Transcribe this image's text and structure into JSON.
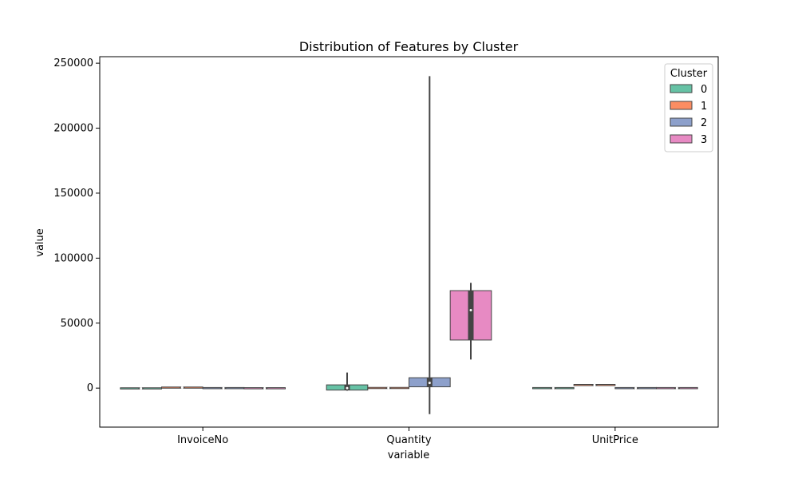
{
  "chart_data": {
    "type": "violin",
    "title": "Distribution of Features by Cluster",
    "xlabel": "variable",
    "ylabel": "value",
    "categories": [
      "InvoiceNo",
      "Quantity",
      "UnitPrice"
    ],
    "ylim": [
      -30000,
      255000
    ],
    "yticks": [
      0,
      50000,
      100000,
      150000,
      200000,
      250000
    ],
    "ytick_labels": [
      "0",
      "50000",
      "100000",
      "150000",
      "200000",
      "250000"
    ],
    "grid": false,
    "legend": {
      "title": "Cluster",
      "placement": "top-right",
      "entries": [
        "0",
        "1",
        "2",
        "3"
      ]
    },
    "series": [
      {
        "name": "0",
        "color": "#66c2a5",
        "values": [
          {
            "min": -500,
            "q1": -300,
            "median": -200,
            "q3": -100,
            "max": 200
          },
          {
            "min": -2000,
            "q1": -1500,
            "median": 0,
            "q3": 2500,
            "max": 12000
          },
          {
            "min": -300,
            "q1": -100,
            "median": 0,
            "q3": 100,
            "max": 300
          }
        ]
      },
      {
        "name": "1",
        "color": "#fc8d62",
        "values": [
          {
            "min": 200,
            "q1": 300,
            "median": 400,
            "q3": 500,
            "max": 600
          },
          {
            "min": -200,
            "q1": 0,
            "median": 100,
            "q3": 200,
            "max": 400
          },
          {
            "min": 2200,
            "q1": 2300,
            "median": 2400,
            "q3": 2500,
            "max": 2600
          }
        ]
      },
      {
        "name": "2",
        "color": "#8da0cb",
        "values": [
          {
            "min": -200,
            "q1": -100,
            "median": 0,
            "q3": 100,
            "max": 200
          },
          {
            "min": -20000,
            "q1": 1000,
            "median": 4000,
            "q3": 8000,
            "max": 240000
          },
          {
            "min": -400,
            "q1": -200,
            "median": 0,
            "q3": 200,
            "max": 300
          }
        ]
      },
      {
        "name": "3",
        "color": "#e78ac3",
        "values": [
          {
            "min": -500,
            "q1": -300,
            "median": -100,
            "q3": 100,
            "max": 300
          },
          {
            "min": 22000,
            "q1": 37000,
            "median": 60000,
            "q3": 75000,
            "max": 81000
          },
          {
            "min": -300,
            "q1": -100,
            "median": 0,
            "q3": 100,
            "max": 300
          }
        ]
      }
    ]
  }
}
